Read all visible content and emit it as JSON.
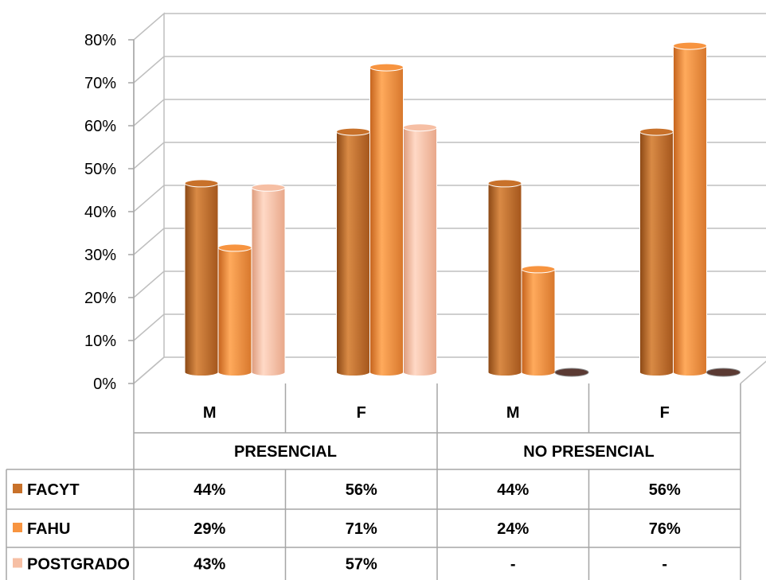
{
  "chart_data": {
    "type": "bar",
    "three_d": true,
    "ylim": [
      0,
      0.8
    ],
    "y_ticks": [
      "0%",
      "10%",
      "20%",
      "30%",
      "40%",
      "50%",
      "60%",
      "70%",
      "80%"
    ],
    "groups": [
      {
        "label": "PRESENCIAL",
        "subcategories": [
          "M",
          "F"
        ]
      },
      {
        "label": "NO PRESENCIAL",
        "subcategories": [
          "M",
          "F"
        ]
      }
    ],
    "categories": [
      "M",
      "F",
      "M",
      "F"
    ],
    "series": [
      {
        "name": "FACYT",
        "color": "#C8712A",
        "values": [
          0.44,
          0.56,
          0.44,
          0.56
        ],
        "labels": [
          "44%",
          "56%",
          "44%",
          "56%"
        ]
      },
      {
        "name": "FAHU",
        "color": "#F79440",
        "values": [
          0.29,
          0.71,
          0.24,
          0.76
        ],
        "labels": [
          "29%",
          "71%",
          "24%",
          "76%"
        ]
      },
      {
        "name": "POSTGRADO",
        "color": "#F6BFA4",
        "values": [
          0.43,
          0.57,
          null,
          null
        ],
        "labels": [
          "43%",
          "57%",
          "-",
          "-"
        ]
      }
    ],
    "grid": true,
    "legend": "data-table"
  }
}
